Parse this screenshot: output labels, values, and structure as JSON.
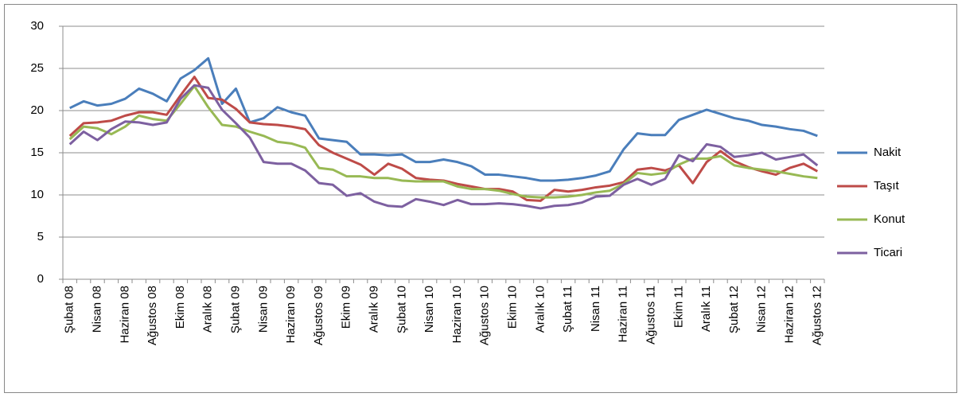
{
  "chart_data": {
    "type": "line",
    "categories": [
      "Şubat 08",
      null,
      "Nisan 08",
      null,
      "Haziran 08",
      null,
      "Ağustos 08",
      null,
      "Ekim 08",
      null,
      "Aralık 08",
      null,
      "Şubat 09",
      null,
      "Nisan 09",
      null,
      "Haziran 09",
      null,
      "Ağustos 09",
      null,
      "Ekim 09",
      null,
      "Aralık 09",
      null,
      "Şubat 10",
      null,
      "Nisan 10",
      null,
      "Haziran 10",
      null,
      "Ağustos 10",
      null,
      "Ekim 10",
      null,
      "Aralık 10",
      null,
      "Şubat 11",
      null,
      "Nisan 11",
      null,
      "Haziran 11",
      null,
      "Ağustos 11",
      null,
      "Ekim 11",
      null,
      "Aralık 11",
      null,
      "Şubat 12",
      null,
      "Nisan 12",
      null,
      "Haziran 12",
      null,
      "Ağustos 12"
    ],
    "series": [
      {
        "name": "Nakit",
        "color": "#4a7ebb",
        "values": [
          20.3,
          21.1,
          20.6,
          20.8,
          21.4,
          22.6,
          22.0,
          21.1,
          23.8,
          24.8,
          26.2,
          20.8,
          22.6,
          18.6,
          19.1,
          20.4,
          19.8,
          19.4,
          16.7,
          16.5,
          16.3,
          14.8,
          14.8,
          14.7,
          14.8,
          13.9,
          13.9,
          14.2,
          13.9,
          13.4,
          12.4,
          12.4,
          12.2,
          12.0,
          11.7,
          11.7,
          11.8,
          12.0,
          12.3,
          12.8,
          15.4,
          17.3,
          17.1,
          17.1,
          18.9,
          19.5,
          20.1,
          19.6,
          19.1,
          18.8,
          18.3,
          18.1,
          17.8,
          17.6,
          17.0
        ]
      },
      {
        "name": "Taşıt",
        "color": "#be4b48",
        "values": [
          17.0,
          18.5,
          18.6,
          18.8,
          19.4,
          19.8,
          19.8,
          19.5,
          21.8,
          24.0,
          21.5,
          21.3,
          20.2,
          18.6,
          18.4,
          18.3,
          18.1,
          17.8,
          15.9,
          15.0,
          14.3,
          13.6,
          12.4,
          13.7,
          13.1,
          12.0,
          11.8,
          11.7,
          11.3,
          11.0,
          10.7,
          10.7,
          10.4,
          9.4,
          9.3,
          10.6,
          10.4,
          10.6,
          10.9,
          11.1,
          11.5,
          13.0,
          13.2,
          12.9,
          13.5,
          11.4,
          13.9,
          15.2,
          14.0,
          13.3,
          12.8,
          12.4,
          13.2,
          13.7,
          12.8
        ]
      },
      {
        "name": "Konut",
        "color": "#98b954",
        "values": [
          16.6,
          18.1,
          17.9,
          17.2,
          18.1,
          19.4,
          19.0,
          18.8,
          20.8,
          22.9,
          20.4,
          18.3,
          18.1,
          17.5,
          17.0,
          16.3,
          16.1,
          15.6,
          13.2,
          13.0,
          12.2,
          12.2,
          12.0,
          12.0,
          11.7,
          11.6,
          11.6,
          11.6,
          11.0,
          10.7,
          10.7,
          10.5,
          10.1,
          9.8,
          9.7,
          9.7,
          9.8,
          10.0,
          10.3,
          10.5,
          11.3,
          12.6,
          12.4,
          12.6,
          13.6,
          14.3,
          14.3,
          14.6,
          13.5,
          13.2,
          13.0,
          12.8,
          12.5,
          12.2,
          12.0
        ]
      },
      {
        "name": "Ticari",
        "color": "#7d60a0",
        "values": [
          16.0,
          17.5,
          16.5,
          17.8,
          18.7,
          18.6,
          18.3,
          18.6,
          21.4,
          23.0,
          22.7,
          20.1,
          18.5,
          16.8,
          13.9,
          13.7,
          13.7,
          12.9,
          11.4,
          11.2,
          9.9,
          10.2,
          9.2,
          8.7,
          8.6,
          9.5,
          9.2,
          8.8,
          9.4,
          8.9,
          8.9,
          9.0,
          8.9,
          8.7,
          8.4,
          8.7,
          8.8,
          9.1,
          9.8,
          9.9,
          11.2,
          11.9,
          11.2,
          11.9,
          14.7,
          14.0,
          16.0,
          15.7,
          14.5,
          14.7,
          15.0,
          14.2,
          14.5,
          14.8,
          13.5
        ]
      }
    ],
    "ylim": [
      0,
      30
    ],
    "yticks": [
      0,
      5,
      10,
      15,
      20,
      25,
      30
    ],
    "grid": true,
    "legend": "right"
  }
}
